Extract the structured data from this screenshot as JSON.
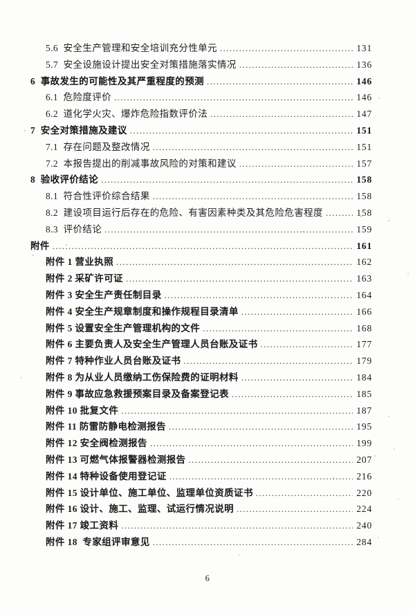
{
  "document": {
    "type": "table-of-contents-scan",
    "page_number": "6",
    "ink_color": "#1f1f1f",
    "paper_color": "#fdfdfc"
  },
  "toc": {
    "entries": [
      {
        "label": "5.6  安全生产管理和安全培训充分性单元",
        "page": "131",
        "level": 2,
        "weight": "normal"
      },
      {
        "label": "5.7  安全设施设计提出安全对策措施落实情况",
        "page": "136",
        "level": 2,
        "weight": "normal"
      },
      {
        "label": "6  事故发生的可能性及其严重程度的预测",
        "page": "146",
        "level": 1,
        "weight": "bold"
      },
      {
        "label": "6.1  危险度评价",
        "page": "146",
        "level": 2,
        "weight": "normal"
      },
      {
        "label": "6.2  道化学火灾、爆炸危险指数评价法",
        "page": "147",
        "level": 2,
        "weight": "normal"
      },
      {
        "label": "7  安全对策措施及建议",
        "page": "151",
        "level": 1,
        "weight": "bold"
      },
      {
        "label": "7.1  存在问题及整改情况",
        "page": "151",
        "level": 2,
        "weight": "normal"
      },
      {
        "label": "7.2  本报告提出的削减事故风险的对策和建议",
        "page": "157",
        "level": 2,
        "weight": "normal"
      },
      {
        "label": "8  验收评价结论",
        "page": "158",
        "level": 1,
        "weight": "bold"
      },
      {
        "label": "8.1  符合性评价综合结果",
        "page": "158",
        "level": 2,
        "weight": "normal"
      },
      {
        "label": "8.2  建设项目运行后存在的危险、有害因素种类及其危险危害程度",
        "page": "158",
        "level": 2,
        "weight": "normal"
      },
      {
        "label": "8.3  评价结论",
        "page": "159",
        "level": 2,
        "weight": "normal"
      },
      {
        "label": "附件",
        "page": "161",
        "level": 1,
        "weight": "bold"
      },
      {
        "label": "附件 1 营业执照",
        "page": "162",
        "level": 2,
        "weight": "medium"
      },
      {
        "label": "附件 2 采矿许可证",
        "page": "163",
        "level": 2,
        "weight": "medium"
      },
      {
        "label": "附件 3 安全生产责任制目录",
        "page": "164",
        "level": 2,
        "weight": "medium"
      },
      {
        "label": "附件 4 安全生产规章制度和操作规程目录清单",
        "page": "166",
        "level": 2,
        "weight": "medium"
      },
      {
        "label": "附件 5 设置安全生产管理机构的文件",
        "page": "168",
        "level": 2,
        "weight": "medium"
      },
      {
        "label": "附件 6 主要负责人及安全生产管理人员台账及证书",
        "page": "177",
        "level": 2,
        "weight": "medium"
      },
      {
        "label": "附件 7 特种作业人员台账及证书",
        "page": "179",
        "level": 2,
        "weight": "medium"
      },
      {
        "label": "附件 8 为从业人员缴纳工伤保险费的证明材料",
        "page": "184",
        "level": 2,
        "weight": "medium"
      },
      {
        "label": "附件 9 事故应急救援预案目录及备案登记表",
        "page": "185",
        "level": 2,
        "weight": "medium"
      },
      {
        "label": "附件 10 批复文件",
        "page": "187",
        "level": 2,
        "weight": "medium"
      },
      {
        "label": "附件 11 防雷防静电检测报告",
        "page": "195",
        "level": 2,
        "weight": "medium"
      },
      {
        "label": "附件 12 安全阀检测报告",
        "page": "199",
        "level": 2,
        "weight": "medium"
      },
      {
        "label": "附件 13 可燃气体报警器检测报告",
        "page": "207",
        "level": 2,
        "weight": "medium"
      },
      {
        "label": "附件 14 特种设备使用登记证",
        "page": "216",
        "level": 2,
        "weight": "medium"
      },
      {
        "label": "附件 15 设计单位、施工单位、监理单位资质证书",
        "page": "220",
        "level": 2,
        "weight": "medium"
      },
      {
        "label": "附件 16 设计、施工、监理、试运行情况说明",
        "page": "224",
        "level": 2,
        "weight": "medium"
      },
      {
        "label": "附件 17 竣工资料",
        "page": "240",
        "level": 2,
        "weight": "medium"
      },
      {
        "label": "附件 18  专家组评审意见",
        "page": "284",
        "level": 2,
        "weight": "medium"
      }
    ]
  }
}
